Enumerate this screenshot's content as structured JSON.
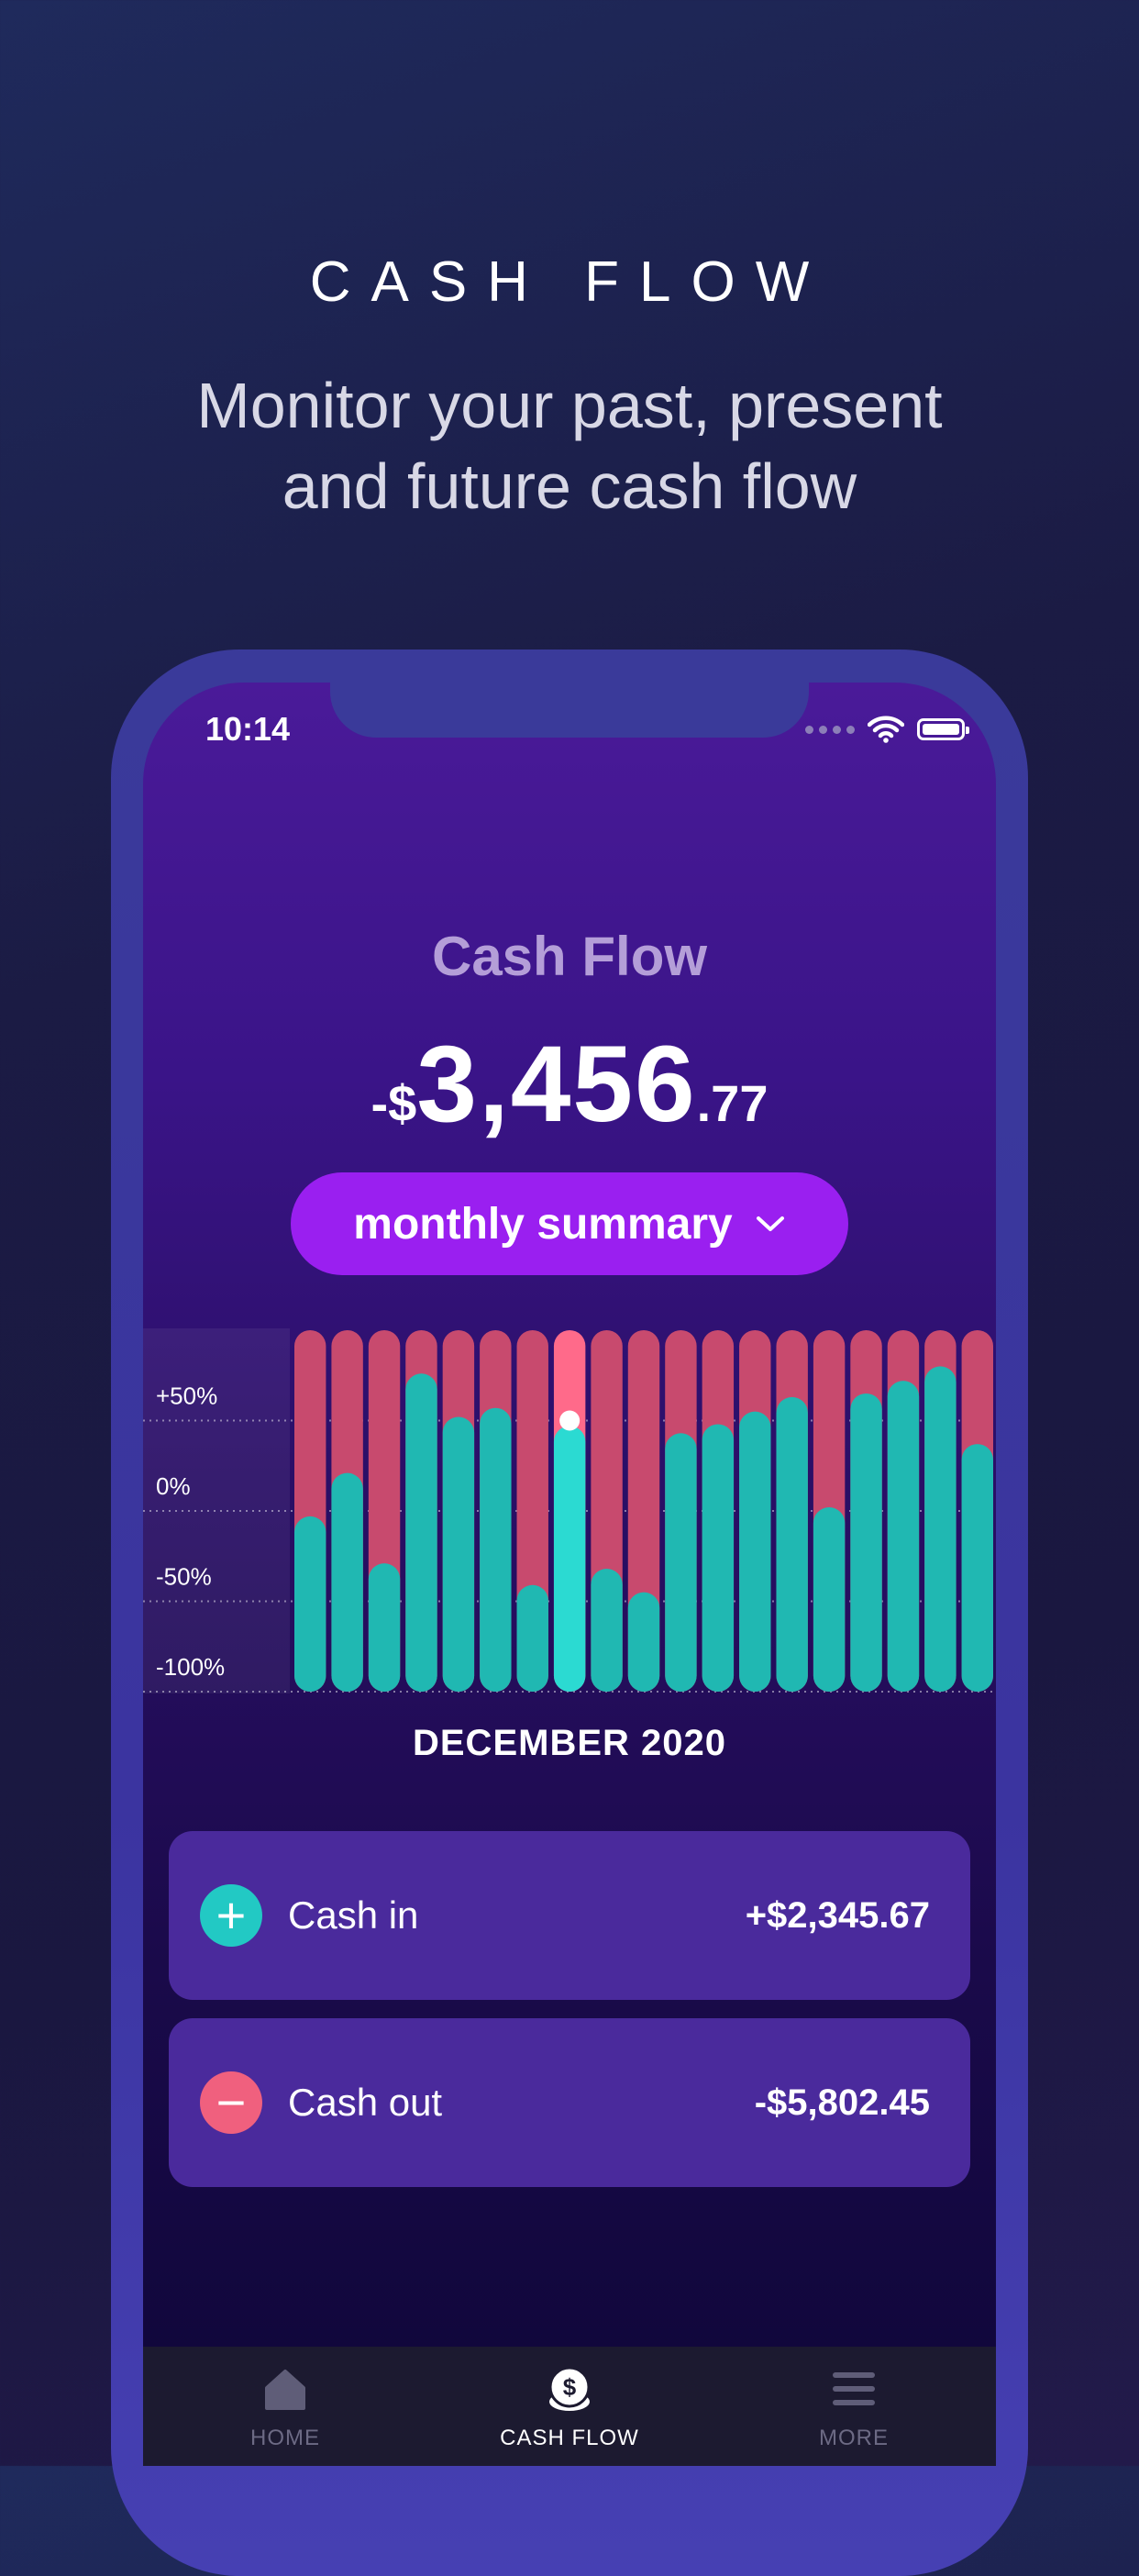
{
  "promo": {
    "headline": "CASH FLOW",
    "tagline_line1": "Monitor your past, present",
    "tagline_line2": "and future cash flow"
  },
  "status_bar": {
    "time": "10:14",
    "icons": [
      "signal-dots",
      "wifi-icon",
      "battery-icon"
    ]
  },
  "screen": {
    "title": "Cash Flow",
    "amount_sign": "-$",
    "amount_int": "3,456",
    "amount_dec": ".77",
    "summary_button": {
      "label": "monthly summary",
      "icon": "chevron-down-icon"
    },
    "month_label": "DECEMBER 2020"
  },
  "cards": [
    {
      "icon": "plus-icon",
      "label": "Cash in",
      "value": "+$2,345.67",
      "color": "#22c9c4"
    },
    {
      "icon": "minus-icon",
      "label": "Cash out",
      "value": "-$5,802.45",
      "color": "#f0607e"
    }
  ],
  "tabs": [
    {
      "label": "HOME",
      "icon": "home-icon",
      "active": false
    },
    {
      "label": "CASH FLOW",
      "icon": "dollar-coin-icon",
      "active": true
    },
    {
      "label": "MORE",
      "icon": "menu-icon",
      "active": false
    }
  ],
  "colors": {
    "accent": "#9a1ff0",
    "cash_in": "#20b8b2",
    "cash_in_highlight": "#2bdad2",
    "cash_out": "#c84a6e",
    "cash_out_highlight": "#ff6a8a"
  },
  "chart_data": {
    "type": "bar",
    "stacked": true,
    "y_tick_labels": [
      "+50%",
      "0%",
      "-50%",
      "-100%"
    ],
    "ylim": [
      -100,
      100
    ],
    "highlight_index": 7,
    "series": [
      {
        "values": [
          -3,
          21,
          -29,
          76,
          52,
          57,
          -41,
          47,
          -32,
          -45,
          43,
          48,
          55,
          63,
          2,
          65,
          72,
          80,
          37
        ]
      }
    ]
  }
}
